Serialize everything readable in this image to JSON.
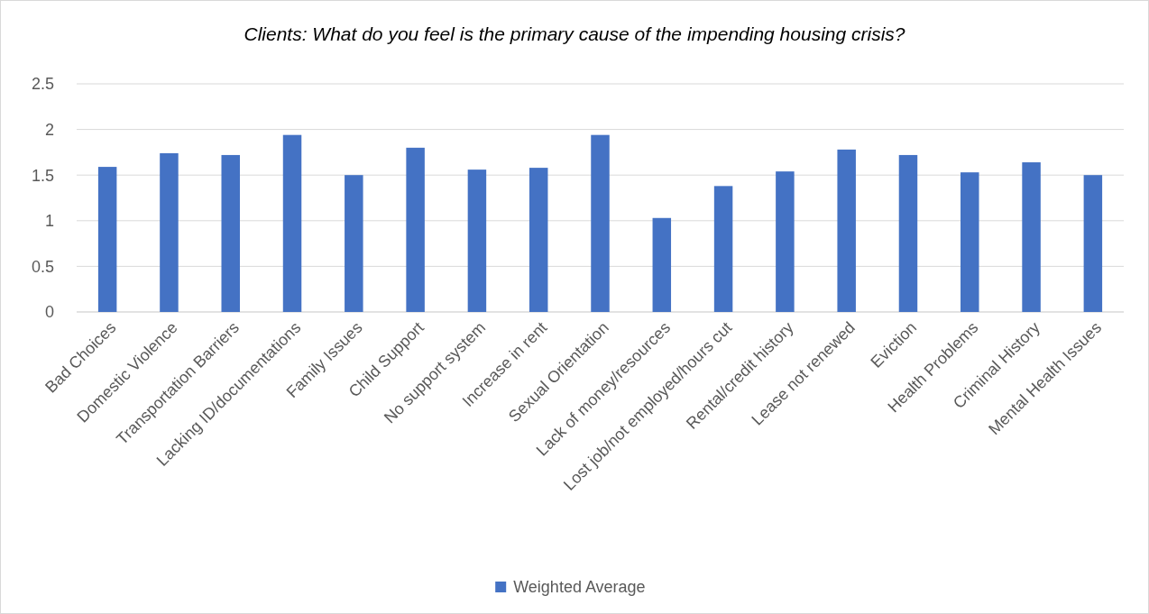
{
  "chart_data": {
    "type": "bar",
    "title": "Clients: What do you feel is the primary cause of the impending housing crisis?",
    "categories": [
      "Bad Choices",
      "Domestic Violence",
      "Transportation Barriers",
      "Lacking ID/documentations",
      "Family Issues",
      "Child Support",
      "No support system",
      "Increase in rent",
      "Sexual Orientation",
      "Lack of money/resources",
      "Lost job/not employed/hours cut",
      "Rental/credit history",
      "Lease not renewed",
      "Eviction",
      "Health Problems",
      "Criminal History",
      "Mental Health Issues"
    ],
    "series": [
      {
        "name": "Weighted Average",
        "color": "#4472c4",
        "values": [
          1.59,
          1.74,
          1.72,
          1.94,
          1.5,
          1.8,
          1.56,
          1.58,
          1.94,
          1.03,
          1.38,
          1.54,
          1.78,
          1.72,
          1.53,
          1.64,
          1.5
        ]
      }
    ],
    "ylim": [
      0,
      2.5
    ],
    "yticks": [
      0,
      0.5,
      1,
      1.5,
      2,
      2.5
    ],
    "grid": "y",
    "legend": "bottom"
  }
}
